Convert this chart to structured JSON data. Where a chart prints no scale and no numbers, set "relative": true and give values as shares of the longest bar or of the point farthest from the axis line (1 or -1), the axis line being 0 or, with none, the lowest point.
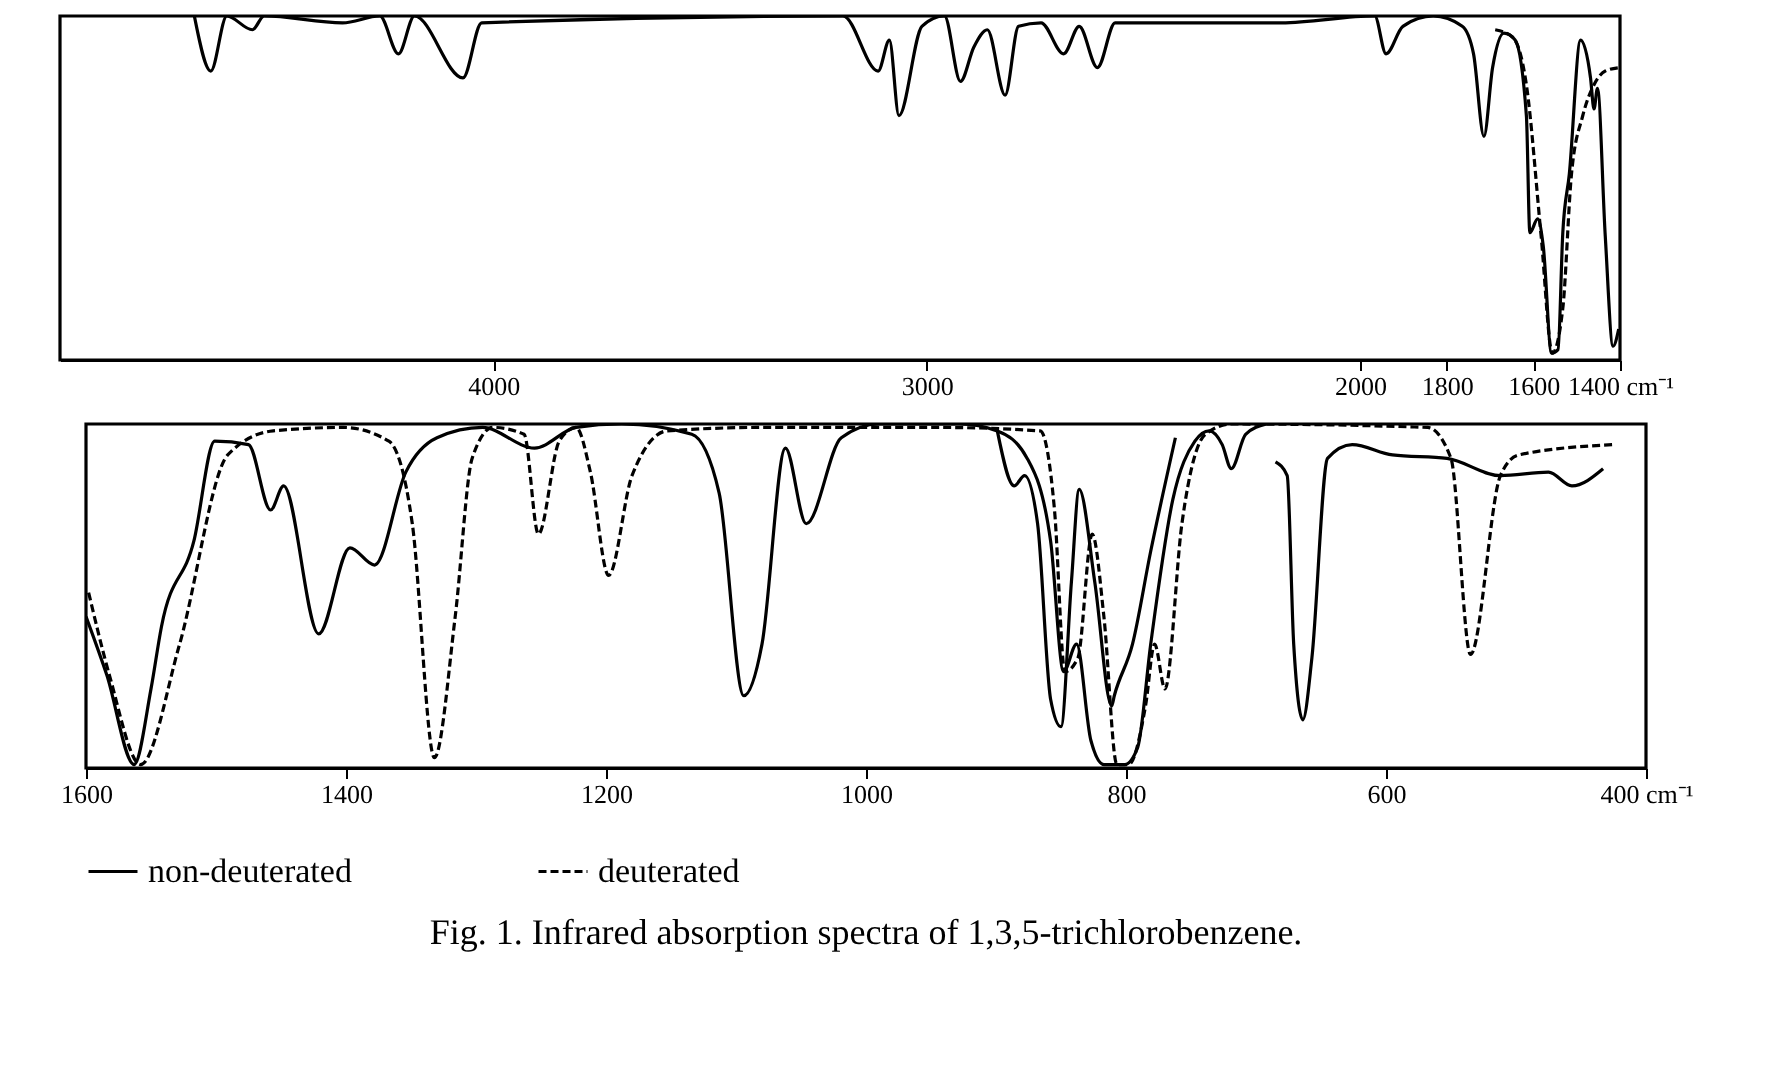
{
  "chart_data": [
    {
      "type": "line",
      "relative": true,
      "xlim": [
        5000,
        1400
      ],
      "xticks": [
        4000,
        3000,
        2000,
        1800,
        1600,
        {
          "value": 1400,
          "label": "1400 cm⁻¹"
        }
      ],
      "legend": false,
      "series": [
        {
          "color": "#000000",
          "line_style": "solid",
          "x": [
            4690,
            4652,
            4615,
            4556,
            4529,
            4348,
            4262,
            4219,
            4182,
            4070,
            4027,
            3193,
            3112,
            3086,
            3064,
            3011,
            2959,
            2922,
            2891,
            2860,
            2819,
            2788,
            2736,
            2684,
            2648,
            2606,
            2565,
            2181,
            1966,
            1940,
            1901,
            1831,
            1764,
            1738,
            1714,
            1694,
            1668,
            1642,
            1616,
            1608,
            1590,
            1577,
            1558,
            1543,
            1532,
            1517,
            1491,
            1468,
            1460,
            1452,
            1434,
            1416,
            1403
          ],
          "values": [
            1,
            0.84,
            1,
            0.96,
            1,
            0.98,
            1,
            0.89,
            1,
            0.82,
            0.98,
            1,
            0.84,
            0.93,
            0.71,
            0.97,
            1,
            0.81,
            0.91,
            0.96,
            0.77,
            0.97,
            0.98,
            0.89,
            0.97,
            0.85,
            0.98,
            0.98,
            1,
            0.89,
            0.97,
            1,
            0.97,
            0.89,
            0.65,
            0.85,
            0.95,
            0.93,
            0.71,
            0.37,
            0.41,
            0.33,
            0.02,
            0.03,
            0.37,
            0.54,
            0.93,
            0.82,
            0.73,
            0.79,
            0.36,
            0.04,
            0.09
          ]
        },
        {
          "color": "#000000",
          "line_style": "dashed",
          "x": [
            1688,
            1649,
            1616,
            1582,
            1556,
            1532,
            1512,
            1486,
            1460,
            1434,
            1400
          ],
          "values": [
            0.96,
            0.94,
            0.8,
            0.36,
            0.02,
            0.15,
            0.54,
            0.71,
            0.8,
            0.84,
            0.85
          ]
        }
      ]
    },
    {
      "type": "line",
      "relative": true,
      "title": "Fig. 1.  Infrared absorption spectra of 1,3,5-trichlorobenzene.",
      "xlim": [
        1600,
        400
      ],
      "xticks": [
        1600,
        1400,
        1200,
        1000,
        800,
        600,
        {
          "value": 400,
          "label": "400 cm⁻¹"
        }
      ],
      "legend": "bottom",
      "series": [
        {
          "name": "non-deuterated",
          "color": "#000000",
          "line_style": "solid",
          "x": [
            1600,
            1584,
            1563,
            1550,
            1542,
            1517,
            1501,
            1475,
            1458,
            1448,
            1421,
            1397,
            1378,
            1354,
            1330,
            1295,
            1255,
            1223,
            1188,
            1134,
            1113,
            1094,
            1080,
            1062,
            1046,
            1019,
            990,
            928,
            899,
            876,
            858,
            848,
            838,
            827,
            817,
            801,
            791,
            781,
            764,
            747,
            736,
            726,
            719,
            708,
            692,
            688,
            685,
            676,
            671,
            664,
            657,
            645,
            626,
            595,
            553,
            512,
            475,
            457,
            433
          ],
          "values": [
            0.44,
            0.27,
            0.01,
            0.23,
            0.41,
            0.66,
            0.95,
            0.94,
            0.75,
            0.82,
            0.39,
            0.64,
            0.59,
            0.86,
            0.96,
            0.99,
            0.93,
            0.99,
            1,
            0.97,
            0.8,
            0.21,
            0.36,
            0.93,
            0.71,
            0.96,
            1,
            1,
            0.98,
            0.9,
            0.66,
            0.28,
            0.36,
            0.08,
            0.01,
            0.01,
            0.06,
            0.36,
            0.78,
            0.95,
            0.98,
            0.94,
            0.87,
            0.97,
            1,
            null,
            0.89,
            0.85,
            0.36,
            0.14,
            0.32,
            0.9,
            0.94,
            0.91,
            0.9,
            0.85,
            0.86,
            0.82,
            0.87
          ]
        },
        {
          "color": "#000000",
          "line_style": "solid",
          "x": [
            899,
            886,
            878,
            868,
            858,
            850,
            842,
            836,
            824,
            811,
            809,
            795,
            781,
            762
          ],
          "values": [
            0.98,
            0.82,
            0.85,
            0.71,
            0.2,
            0.12,
            0.54,
            0.81,
            0.54,
            0.18,
            0.21,
            0.36,
            0.63,
            0.96
          ]
        },
        {
          "name": "deuterated",
          "color": "#000000",
          "line_style": "dashed",
          "x": [
            1598,
            1582,
            1558,
            1528,
            1491,
            1456,
            1402,
            1367,
            1349,
            1332,
            1316,
            1303,
            1287,
            1263,
            1252,
            1236,
            1223,
            1212,
            1198,
            1180,
            1153,
            1080,
            945,
            866,
            855,
            847,
            837,
            826,
            817,
            807,
            798,
            785,
            778,
            770,
            757,
            739,
            719,
            568,
            550,
            535,
            512,
            498,
            426
          ],
          "values": [
            0.51,
            0.27,
            0.01,
            0.36,
            0.91,
            0.98,
            0.99,
            0.95,
            0.71,
            0.03,
            0.44,
            0.9,
            0.99,
            0.97,
            0.68,
            0.95,
            0.99,
            0.86,
            0.56,
            0.85,
            0.98,
            0.99,
            0.99,
            0.98,
            0.75,
            0.28,
            0.32,
            0.68,
            0.44,
            0.01,
            0.01,
            0.18,
            0.36,
            0.23,
            0.71,
            0.97,
            1,
            0.99,
            0.9,
            0.33,
            0.85,
            0.91,
            0.94
          ]
        }
      ]
    }
  ]
}
